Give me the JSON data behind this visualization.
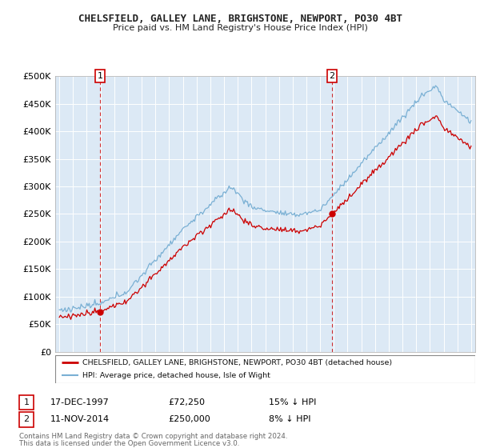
{
  "title1": "CHELSFIELD, GALLEY LANE, BRIGHSTONE, NEWPORT, PO30 4BT",
  "title2": "Price paid vs. HM Land Registry's House Price Index (HPI)",
  "legend_red": "CHELSFIELD, GALLEY LANE, BRIGHSTONE, NEWPORT, PO30 4BT (detached house)",
  "legend_blue": "HPI: Average price, detached house, Isle of Wight",
  "sale1_date": "17-DEC-1997",
  "sale1_price": "£72,250",
  "sale1_hpi": "15% ↓ HPI",
  "sale2_date": "11-NOV-2014",
  "sale2_price": "£250,000",
  "sale2_hpi": "8% ↓ HPI",
  "footnote1": "Contains HM Land Registry data © Crown copyright and database right 2024.",
  "footnote2": "This data is licensed under the Open Government Licence v3.0.",
  "sale1_year": 1997.96,
  "sale1_value": 72250,
  "sale2_year": 2014.86,
  "sale2_value": 250000,
  "ylim": [
    0,
    500000
  ],
  "xlim_start": 1994.7,
  "xlim_end": 2025.3,
  "red_color": "#cc0000",
  "blue_color": "#7ab0d4",
  "vline_color": "#cc0000",
  "plot_bg_color": "#dce9f5",
  "background_color": "#ffffff",
  "grid_color": "#ffffff"
}
